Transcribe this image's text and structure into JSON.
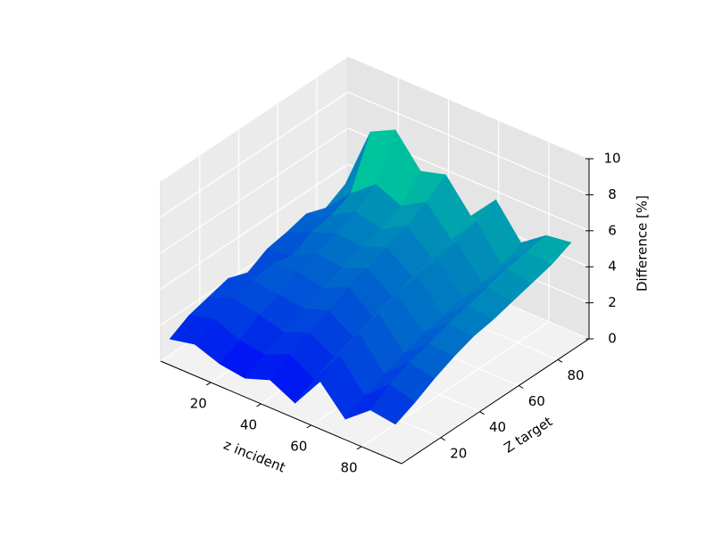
{
  "chart_data": {
    "type": "surface3d",
    "xlabel": "z incident",
    "ylabel": "Z target",
    "zlabel": "Difference [%]",
    "x": [
      2,
      12,
      22,
      32,
      42,
      52,
      62,
      72,
      82,
      92
    ],
    "y": [
      2,
      12,
      22,
      32,
      42,
      52,
      62,
      72,
      82,
      92
    ],
    "z": [
      [
        1.2,
        1.8,
        2.1,
        2.4,
        2.0,
        2.6,
        2.8,
        3.1,
        2.7,
        3.3
      ],
      [
        1.5,
        2.2,
        2.6,
        2.9,
        3.1,
        2.8,
        3.4,
        3.6,
        4.1,
        6.8
      ],
      [
        1.0,
        1.6,
        2.3,
        2.7,
        3.2,
        3.5,
        3.9,
        4.4,
        5.2,
        7.5
      ],
      [
        0.8,
        1.4,
        1.9,
        2.5,
        2.9,
        3.3,
        3.8,
        4.0,
        4.6,
        5.8
      ],
      [
        1.3,
        2.0,
        2.5,
        3.0,
        3.6,
        3.9,
        4.3,
        4.8,
        5.4,
        6.2
      ],
      [
        0.6,
        1.2,
        1.7,
        2.1,
        2.5,
        2.9,
        3.3,
        3.6,
        3.9,
        4.5
      ],
      [
        2.4,
        3.1,
        3.6,
        4.0,
        4.3,
        4.6,
        4.8,
        5.1,
        5.5,
        6.0
      ],
      [
        0.9,
        1.5,
        2.0,
        2.4,
        2.8,
        3.0,
        3.3,
        3.4,
        3.7,
        4.2
      ],
      [
        2.0,
        2.7,
        3.2,
        3.5,
        3.9,
        4.2,
        4.5,
        4.8,
        5.0,
        5.2
      ],
      [
        1.8,
        2.3,
        2.9,
        3.4,
        3.8,
        4.0,
        4.3,
        4.6,
        4.9,
        5.4
      ]
    ],
    "xlim": [
      0,
      96
    ],
    "ylim": [
      0,
      96
    ],
    "zlim": [
      0,
      10
    ],
    "xticks": [
      20,
      40,
      60,
      80
    ],
    "yticks": [
      20,
      40,
      60,
      80
    ],
    "zticks": [
      0,
      2,
      4,
      6,
      8,
      10
    ],
    "colormap": "winter",
    "grid": true
  }
}
